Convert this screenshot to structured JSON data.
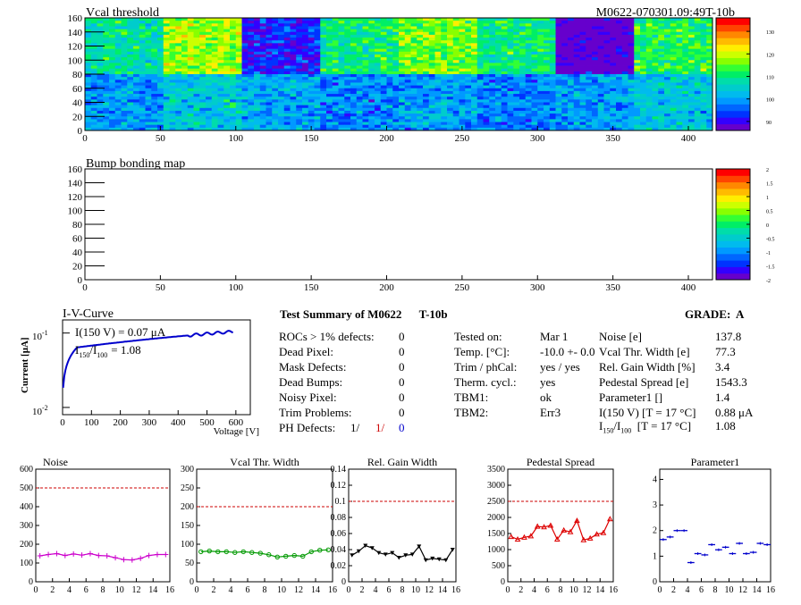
{
  "header": {
    "left_title": "Vcal threshold",
    "right_title": "M0622-070301.09:49T-10b"
  },
  "maps": [
    {
      "id": "vcal",
      "title": "Vcal threshold",
      "x_ticks": [
        "0",
        "50",
        "100",
        "150",
        "200",
        "250",
        "300",
        "350",
        "400"
      ],
      "y_ticks": [
        "0",
        "20",
        "40",
        "60",
        "80",
        "100",
        "120",
        "140",
        "160"
      ],
      "palette_ticks": [
        "90",
        "100",
        "110",
        "120",
        "130"
      ],
      "roc_means_top": [
        108,
        118,
        92,
        110,
        116,
        110,
        86,
        112
      ],
      "roc_means_bottom": [
        100,
        104,
        101,
        98,
        100,
        98,
        100,
        104
      ]
    },
    {
      "id": "bump",
      "title": "Bump bonding map",
      "x_ticks": [
        "0",
        "50",
        "100",
        "150",
        "200",
        "250",
        "300",
        "350",
        "400"
      ],
      "y_ticks": [
        "0",
        "20",
        "40",
        "60",
        "80",
        "100",
        "120",
        "140",
        "160"
      ],
      "palette_ticks": [
        "-2",
        "-1.5",
        "-1",
        "-0.5",
        "0",
        "0.5",
        "1",
        "1.5",
        "2"
      ]
    }
  ],
  "iv": {
    "title": "I-V-Curve",
    "ylabel": "Current [μA]",
    "xlabel": "Voltage [V]",
    "y_tick_top": "10",
    "y_tick_top_exp": "-1",
    "y_tick_bottom": "10",
    "y_tick_bottom_exp": "-2",
    "x_ticks": [
      "0",
      "100",
      "200",
      "300",
      "400",
      "500",
      "600"
    ],
    "annotation1": "I(150 V) = 0.07 μA",
    "annotation2_prefix": "I",
    "annotation2_sub1": "150",
    "annotation2_mid": "/I",
    "annotation2_sub2": "100",
    "annotation2_value": "=  1.08"
  },
  "summary": {
    "title": "Test Summary of M0622",
    "temp_tag": "T-10b",
    "grade_label": "GRADE:  A",
    "defects": [
      {
        "label": "ROCs > 1% defects:",
        "value": "0"
      },
      {
        "label": "Dead Pixel:",
        "value": "0"
      },
      {
        "label": "Mask Defects:",
        "value": "0"
      },
      {
        "label": "Dead Bumps:",
        "value": "0"
      },
      {
        "label": "Noisy Pixel:",
        "value": "0"
      },
      {
        "label": "Trim Problems:",
        "value": "0"
      }
    ],
    "ph_label": "PH Defects:",
    "ph_values": [
      "1/",
      "1/",
      "0"
    ],
    "tests": [
      {
        "label": "Tested on:",
        "value": "Mar 1"
      },
      {
        "label": "Temp. [°C]:",
        "value": "-10.0 +- 0.0"
      },
      {
        "label": "Trim / phCal:",
        "value": "yes / yes"
      },
      {
        "label": "Therm. cycl.:",
        "value": "yes"
      },
      {
        "label": "TBM1:",
        "value": "ok"
      },
      {
        "label": "TBM2:",
        "value": "Err3"
      }
    ],
    "params": [
      {
        "label": "Noise [e]",
        "value": "137.8"
      },
      {
        "label": "Vcal Thr. Width [e]",
        "value": "77.3"
      },
      {
        "label": "Rel. Gain Width [%]",
        "value": "3.4"
      },
      {
        "label": "Pedestal Spread [e]",
        "value": "1543.3"
      },
      {
        "label": "Parameter1 []",
        "value": "1.4"
      },
      {
        "label": "I(150 V) [T = 17 °C]",
        "value": "0.88 μA"
      }
    ],
    "ratio_prefix": "I",
    "ratio_sub1": "150",
    "ratio_mid": "/I",
    "ratio_sub2": "100",
    "ratio_suffix": "  [T = 17 °C]",
    "ratio_value": "1.08"
  },
  "colors": {
    "noise": "#cc00cc",
    "vcal_width": "#009900",
    "gain": "#000000",
    "pedestal": "#dd0000",
    "param1": "#0000cc",
    "limit": "#cc0000",
    "iv_curve": "#0000cc"
  },
  "chart_data": [
    {
      "type": "line",
      "title": "Noise",
      "x": [
        0,
        1,
        2,
        3,
        4,
        5,
        6,
        7,
        8,
        9,
        10,
        11,
        12,
        13,
        14,
        15
      ],
      "values": [
        138,
        145,
        150,
        140,
        148,
        142,
        150,
        140,
        138,
        128,
        118,
        116,
        125,
        140,
        145,
        145
      ],
      "ylim": [
        0,
        600
      ],
      "y_ticks": [
        0,
        100,
        200,
        300,
        400,
        500,
        600
      ],
      "limit": 500,
      "x_ticks": [
        0,
        2,
        4,
        6,
        8,
        10,
        12,
        14,
        16
      ],
      "marker": "cross"
    },
    {
      "type": "line",
      "title": "Vcal Thr. Width",
      "x": [
        0,
        1,
        2,
        3,
        4,
        5,
        6,
        7,
        8,
        9,
        10,
        11,
        12,
        13,
        14,
        15
      ],
      "values": [
        80,
        82,
        80,
        80,
        78,
        80,
        78,
        76,
        72,
        66,
        68,
        70,
        68,
        80,
        84,
        85
      ],
      "ylim": [
        0,
        300
      ],
      "y_ticks": [
        0,
        50,
        100,
        150,
        200,
        250,
        300
      ],
      "limit": 200,
      "x_ticks": [
        0,
        2,
        4,
        6,
        8,
        10,
        12,
        14,
        16
      ],
      "marker": "circle"
    },
    {
      "type": "line",
      "title": "Rel. Gain Width",
      "x": [
        0,
        1,
        2,
        3,
        4,
        5,
        6,
        7,
        8,
        9,
        10,
        11,
        12,
        13,
        14,
        15
      ],
      "values": [
        0.033,
        0.038,
        0.045,
        0.042,
        0.036,
        0.034,
        0.036,
        0.03,
        0.033,
        0.034,
        0.044,
        0.027,
        0.029,
        0.028,
        0.027,
        0.04
      ],
      "ylim": [
        0,
        0.14
      ],
      "y_ticks": [
        0,
        0.02,
        0.04,
        0.06,
        0.08,
        0.1,
        0.12,
        0.14
      ],
      "limit": 0.1,
      "x_ticks": [
        0,
        2,
        4,
        6,
        8,
        10,
        12,
        14,
        16
      ],
      "marker": "triangle-down"
    },
    {
      "type": "line",
      "title": "Pedestal Spread",
      "x": [
        0,
        1,
        2,
        3,
        4,
        5,
        6,
        7,
        8,
        9,
        10,
        11,
        12,
        13,
        14,
        15
      ],
      "values": [
        1400,
        1320,
        1380,
        1420,
        1720,
        1700,
        1750,
        1320,
        1600,
        1550,
        1900,
        1300,
        1350,
        1480,
        1520,
        1950
      ],
      "ylim": [
        0,
        3500
      ],
      "y_ticks": [
        0,
        500,
        1000,
        1500,
        2000,
        2500,
        3000,
        3500
      ],
      "limit": 2500,
      "x_ticks": [
        0,
        2,
        4,
        6,
        8,
        10,
        12,
        14,
        16
      ],
      "marker": "triangle-up"
    },
    {
      "type": "scatter",
      "title": "Parameter1",
      "x": [
        0,
        1,
        2,
        3,
        4,
        5,
        6,
        7,
        8,
        9,
        10,
        11,
        12,
        13,
        14,
        15
      ],
      "values": [
        1.65,
        1.75,
        2.0,
        2.0,
        0.75,
        1.1,
        1.05,
        1.45,
        1.25,
        1.35,
        1.1,
        1.5,
        1.1,
        1.15,
        1.5,
        1.45
      ],
      "ylim": [
        0,
        4.4
      ],
      "y_ticks": [
        0,
        1,
        2,
        3,
        4
      ],
      "x_ticks": [
        0,
        2,
        4,
        6,
        8,
        10,
        12,
        14,
        16
      ],
      "marker": "hbar"
    }
  ]
}
